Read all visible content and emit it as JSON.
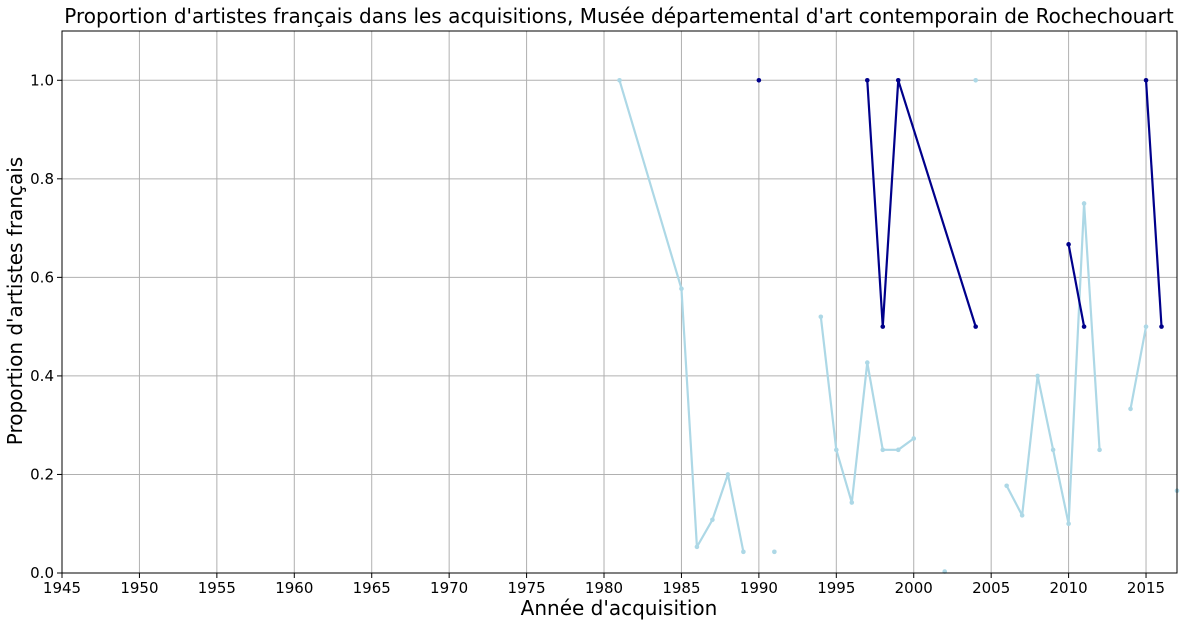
{
  "chart_data": {
    "type": "line",
    "title": "Proportion d'artistes français dans les acquisitions, Musée départemental d'art contemporain de Rochechouart",
    "xlabel": "Année d'acquisition",
    "ylabel": "Proportion d'artistes français",
    "xlim": [
      1945,
      2017
    ],
    "ylim": [
      0,
      1.1
    ],
    "x_ticks": [
      1945,
      1950,
      1955,
      1960,
      1965,
      1970,
      1975,
      1980,
      1985,
      1990,
      1995,
      2000,
      2005,
      2010,
      2015
    ],
    "y_ticks": [
      0.0,
      0.2,
      0.4,
      0.6,
      0.8,
      1.0
    ],
    "grid": true,
    "series": [
      {
        "color": "#add8e6",
        "points": [
          [
            1981,
            1.0
          ],
          [
            1985,
            0.577
          ],
          [
            1986,
            0.053
          ],
          [
            1987,
            0.108
          ],
          [
            1988,
            0.2
          ],
          [
            1989,
            0.043
          ],
          [
            1990,
            null
          ],
          [
            1991,
            0.043
          ],
          [
            1992,
            null
          ],
          [
            1994,
            0.52
          ],
          [
            1995,
            0.25
          ],
          [
            1996,
            0.143
          ],
          [
            1997,
            0.427
          ],
          [
            1998,
            0.25
          ],
          [
            1999,
            0.25
          ],
          [
            2000,
            0.273
          ],
          [
            2001,
            null
          ],
          [
            2002,
            0.003
          ],
          [
            2003,
            null
          ],
          [
            2004,
            1.0
          ],
          [
            2005,
            null
          ],
          [
            2006,
            0.177
          ],
          [
            2007,
            0.117
          ],
          [
            2008,
            0.4
          ],
          [
            2009,
            0.25
          ],
          [
            2010,
            0.1
          ],
          [
            2011,
            0.75
          ],
          [
            2012,
            0.25
          ],
          [
            2013,
            null
          ],
          [
            2014,
            0.333
          ],
          [
            2015,
            0.5
          ],
          [
            2016,
            null
          ],
          [
            2017,
            0.167
          ]
        ]
      },
      {
        "color": "#00008b",
        "points": [
          [
            1990,
            1.0
          ],
          [
            1991,
            null
          ],
          [
            1997,
            1.0
          ],
          [
            1998,
            0.5
          ],
          [
            1999,
            1.0
          ],
          [
            2004,
            0.5
          ],
          [
            2005,
            null
          ],
          [
            2010,
            0.667
          ],
          [
            2011,
            0.5
          ],
          [
            2012,
            null
          ],
          [
            2015,
            1.0
          ],
          [
            2016,
            0.5
          ]
        ]
      }
    ]
  }
}
